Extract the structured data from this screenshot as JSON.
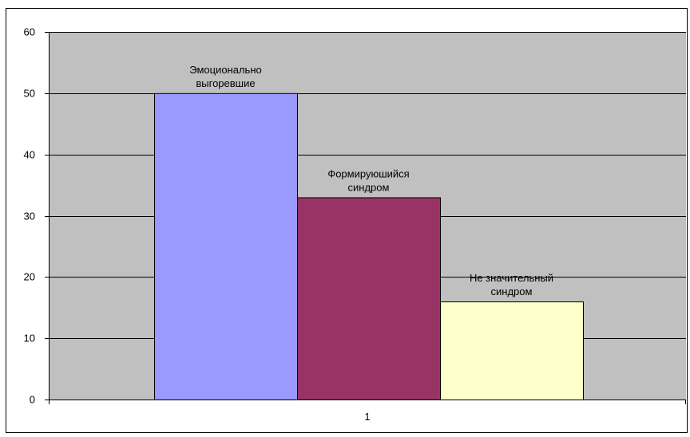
{
  "chart_data": {
    "type": "bar",
    "categories": [
      "1"
    ],
    "series": [
      {
        "name": "Эмоционально выгоревшие",
        "label_lines": [
          "Эмоционально",
          "выгоревшие"
        ],
        "values": [
          50
        ],
        "color": "#9999FF"
      },
      {
        "name": "Формируюшийся синдром",
        "label_lines": [
          "Формируюшийся",
          "синдром"
        ],
        "values": [
          33
        ],
        "color": "#993366"
      },
      {
        "name": "Не значительный синдром",
        "label_lines": [
          "Не значительный",
          "синдром"
        ],
        "values": [
          16
        ],
        "color": "#FFFFCC"
      }
    ],
    "title": "",
    "xlabel": "",
    "ylabel": "",
    "ylim": [
      0,
      60
    ],
    "yticks": [
      0,
      10,
      20,
      30,
      40,
      50,
      60
    ],
    "plot_background": "#C0C0C0",
    "grid": true,
    "legend": "none"
  }
}
